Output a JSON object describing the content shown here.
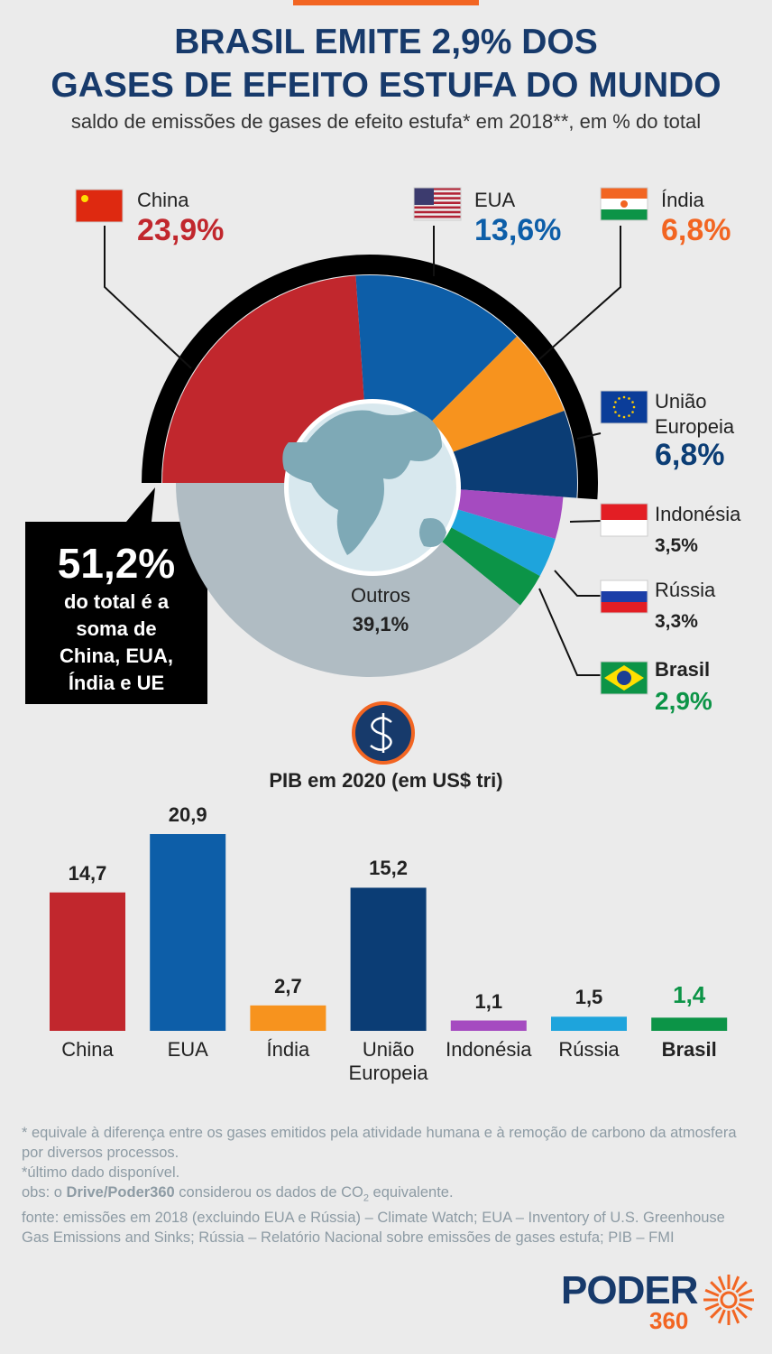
{
  "chart_data": [
    {
      "type": "pie",
      "title": [
        "BRASIL EMITE 2,9% DOS",
        "GASES DE EFEITO ESTUFA DO MUNDO"
      ],
      "subtitle": "saldo de emissões de gases de efeito estufa* em 2018**, em % do total",
      "categories": [
        "China",
        "EUA",
        "Índia",
        "União Europeia",
        "Indonésia",
        "Rússia",
        "Brasil",
        "Outros"
      ],
      "values": [
        23.9,
        13.6,
        6.8,
        6.8,
        3.5,
        3.3,
        2.9,
        39.1
      ],
      "value_labels": [
        "23,9%",
        "13,6%",
        "6,8%",
        "6,8%",
        "3,5%",
        "3,3%",
        "2,9%",
        "39,1%"
      ],
      "colors": [
        "#c1272d",
        "#0d5ea8",
        "#f7931e",
        "#0b3d75",
        "#a54bc0",
        "#1ea4dc",
        "#0c9447",
        "#b0bcc3"
      ],
      "annotation": {
        "value_label": "51,2%",
        "text": "do total é a soma de China, EUA, Índia e UE"
      }
    },
    {
      "type": "bar",
      "title": "PIB em 2020 (em US$ tri)",
      "categories": [
        "China",
        "EUA",
        "Índia",
        "União Europeia",
        "Indonésia",
        "Rússia",
        "Brasil"
      ],
      "values": [
        14.7,
        20.9,
        2.7,
        15.2,
        1.1,
        1.5,
        1.4
      ],
      "value_labels": [
        "14,7",
        "20,9",
        "2,7",
        "15,2",
        "1,1",
        "1,5",
        "1,4"
      ],
      "colors": [
        "#c1272d",
        "#0d5ea8",
        "#f7931e",
        "#0b3d75",
        "#a54bc0",
        "#1ea4dc",
        "#0c9447"
      ]
    }
  ],
  "footer": {
    "notes": [
      "* equivale à diferença entre os gases emitidos pela atividade humana e à remoção de carbono da atmosfera por diversos processos.",
      "*último dado disponível."
    ],
    "obs": [
      "obs: o ",
      "Drive/Poder360",
      " considerou os dados de CO",
      "2",
      " equivalente."
    ],
    "source": "fonte: emissões em 2018 (excluindo EUA e Rússia) – Climate Watch; EUA – Inventory of U.S. Greenhouse Gas Emissions and Sinks; Rússia – Relatório Nacional sobre emissões de gases estufa;  PIB – FMI"
  },
  "logo": {
    "name": "PODER",
    "number": "360"
  }
}
